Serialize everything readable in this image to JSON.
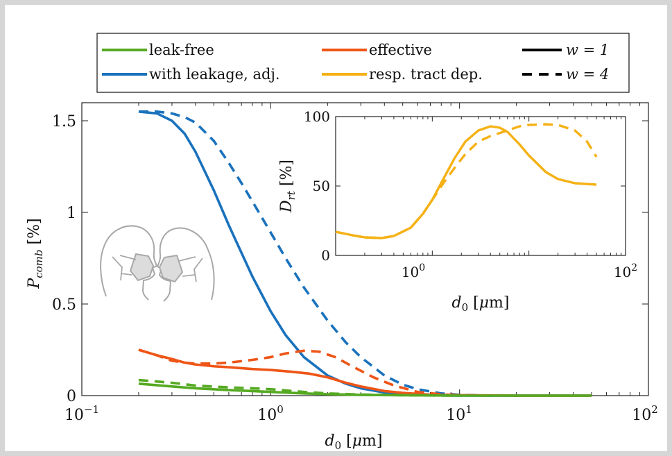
{
  "colors": {
    "leak_free": "#55aa22",
    "with_leakage": "#1a72bd",
    "effective": "#ee5516",
    "resp_tract": "#f5b114",
    "frame": "#d6d6d6"
  },
  "legend": {
    "entries": [
      {
        "label": "leak-free",
        "color": "#55aa22",
        "style": "solid"
      },
      {
        "label": "with leakage, adj.",
        "color": "#1a72bd",
        "style": "solid"
      },
      {
        "label": "effective",
        "color": "#ee5516",
        "style": "solid"
      },
      {
        "label": "resp. tract dep.",
        "color": "#f5b114",
        "style": "solid"
      },
      {
        "label": "w = 1",
        "color": "#000000",
        "style": "solid"
      },
      {
        "label": "w = 4",
        "color": "#000000",
        "style": "dashed"
      }
    ]
  },
  "illustration": {
    "icon": "two-masked-heads-icon"
  },
  "chart_data": [
    {
      "type": "line",
      "panel": "main",
      "xscale": "log",
      "xlim": [
        0.1,
        100
      ],
      "ylim": [
        0,
        1.6
      ],
      "xlabel": "d_0 [μm]",
      "ylabel": "P_comb [%]",
      "xticks": [
        {
          "value": 0.1,
          "base": "10",
          "exp": "−1"
        },
        {
          "value": 1,
          "base": "10",
          "exp": "0"
        },
        {
          "value": 10,
          "base": "10",
          "exp": "1"
        },
        {
          "value": 100,
          "base": "10",
          "exp": "2"
        }
      ],
      "yticks": [
        {
          "value": 0,
          "label": "0"
        },
        {
          "value": 0.5,
          "label": "0.5"
        },
        {
          "value": 1,
          "label": "1"
        },
        {
          "value": 1.5,
          "label": "1.5"
        }
      ],
      "grid": false,
      "series": [
        {
          "name": "with leakage, adj.",
          "w": 1,
          "style": "solid",
          "color": "#1a72bd",
          "x": [
            0.2,
            0.25,
            0.3,
            0.35,
            0.4,
            0.5,
            0.6,
            0.7,
            0.8,
            1.0,
            1.2,
            1.5,
            2.0,
            2.5,
            3.0,
            4.0,
            5.0,
            6.0,
            8.0,
            10,
            20,
            50
          ],
          "y": [
            1.55,
            1.54,
            1.5,
            1.43,
            1.33,
            1.12,
            0.93,
            0.78,
            0.65,
            0.46,
            0.33,
            0.21,
            0.11,
            0.065,
            0.04,
            0.017,
            0.008,
            0.004,
            0.001,
            0.0,
            0.0,
            0.0
          ]
        },
        {
          "name": "with leakage, adj.",
          "w": 4,
          "style": "dashed",
          "color": "#1a72bd",
          "x": [
            0.2,
            0.25,
            0.3,
            0.35,
            0.4,
            0.5,
            0.6,
            0.7,
            0.8,
            1.0,
            1.2,
            1.5,
            2.0,
            2.5,
            3.0,
            4.0,
            5.0,
            6.0,
            8.0,
            10,
            15
          ],
          "y": [
            1.55,
            1.55,
            1.54,
            1.52,
            1.49,
            1.39,
            1.27,
            1.16,
            1.06,
            0.89,
            0.75,
            0.59,
            0.41,
            0.29,
            0.21,
            0.11,
            0.06,
            0.035,
            0.012,
            0.004,
            0.0
          ]
        },
        {
          "name": "effective",
          "w": 1,
          "style": "solid",
          "color": "#ee5516",
          "x": [
            0.2,
            0.25,
            0.3,
            0.35,
            0.4,
            0.5,
            0.6,
            0.8,
            1.0,
            1.3,
            1.6,
            2.0,
            2.5,
            3.0,
            4.0,
            5.0,
            7.0,
            10,
            20,
            50
          ],
          "y": [
            0.25,
            0.22,
            0.2,
            0.18,
            0.17,
            0.16,
            0.155,
            0.145,
            0.14,
            0.13,
            0.12,
            0.1,
            0.07,
            0.05,
            0.025,
            0.015,
            0.005,
            0.002,
            0.0,
            0.0
          ]
        },
        {
          "name": "effective",
          "w": 4,
          "style": "dashed",
          "color": "#ee5516",
          "x": [
            0.2,
            0.25,
            0.3,
            0.35,
            0.4,
            0.5,
            0.6,
            0.8,
            1.0,
            1.2,
            1.5,
            1.8,
            2.2,
            2.7,
            3.5,
            4.5,
            6.0,
            8.0,
            10,
            15
          ],
          "y": [
            0.25,
            0.22,
            0.19,
            0.18,
            0.175,
            0.175,
            0.18,
            0.195,
            0.21,
            0.23,
            0.245,
            0.24,
            0.21,
            0.16,
            0.1,
            0.055,
            0.02,
            0.007,
            0.002,
            0.0
          ]
        },
        {
          "name": "leak-free",
          "w": 1,
          "style": "solid",
          "color": "#55aa22",
          "x": [
            0.2,
            0.3,
            0.4,
            0.6,
            0.8,
            1.0,
            1.5,
            2.0,
            3.0,
            5.0,
            10,
            20,
            50
          ],
          "y": [
            0.065,
            0.05,
            0.04,
            0.03,
            0.025,
            0.02,
            0.012,
            0.008,
            0.004,
            0.002,
            0.0,
            0.0,
            0.0
          ]
        },
        {
          "name": "leak-free",
          "w": 4,
          "style": "dashed",
          "color": "#55aa22",
          "x": [
            0.2,
            0.3,
            0.4,
            0.6,
            0.8,
            1.0,
            1.5,
            2.0,
            3.0,
            5.0,
            10
          ],
          "y": [
            0.085,
            0.07,
            0.055,
            0.045,
            0.04,
            0.035,
            0.02,
            0.012,
            0.006,
            0.002,
            0.0
          ]
        }
      ]
    },
    {
      "type": "line",
      "panel": "inset",
      "xscale": "log",
      "xlim": [
        0.1,
        100
      ],
      "ylim": [
        0,
        100
      ],
      "xlabel": "d_0 [μm]",
      "ylabel": "D_rt [%]",
      "xticks": [
        {
          "value": 1,
          "base": "10",
          "exp": "0"
        },
        {
          "value": 100,
          "base": "10",
          "exp": "2"
        }
      ],
      "yticks": [
        {
          "value": 0,
          "label": "0"
        },
        {
          "value": 50,
          "label": "50"
        },
        {
          "value": 100,
          "label": "100"
        }
      ],
      "grid": false,
      "series": [
        {
          "name": "resp. tract dep.",
          "w": 1,
          "style": "solid",
          "color": "#f5b114",
          "x": [
            0.1,
            0.15,
            0.2,
            0.3,
            0.4,
            0.6,
            0.8,
            1.0,
            1.3,
            1.7,
            2.2,
            3.0,
            4.0,
            5.0,
            6.0,
            8.0,
            10,
            15,
            20,
            30,
            50
          ],
          "y": [
            17,
            14.5,
            13,
            12.5,
            14,
            20,
            30,
            40,
            55,
            70,
            82,
            90,
            93,
            92,
            89,
            80,
            72,
            60,
            55,
            52,
            51
          ]
        },
        {
          "name": "resp. tract dep.",
          "w": 4,
          "style": "dashed",
          "color": "#f5b114",
          "x": [
            0.1,
            0.15,
            0.2,
            0.3,
            0.4,
            0.6,
            0.8,
            1.0,
            1.3,
            1.7,
            2.2,
            3.0,
            4.0,
            6.0,
            8.0,
            10,
            15,
            20,
            30,
            40,
            50
          ],
          "y": [
            17,
            14.5,
            13,
            12.5,
            14,
            20,
            30,
            40,
            52,
            63,
            73,
            82,
            86,
            90,
            93,
            94,
            94.5,
            94,
            90,
            82,
            71
          ]
        }
      ]
    }
  ]
}
